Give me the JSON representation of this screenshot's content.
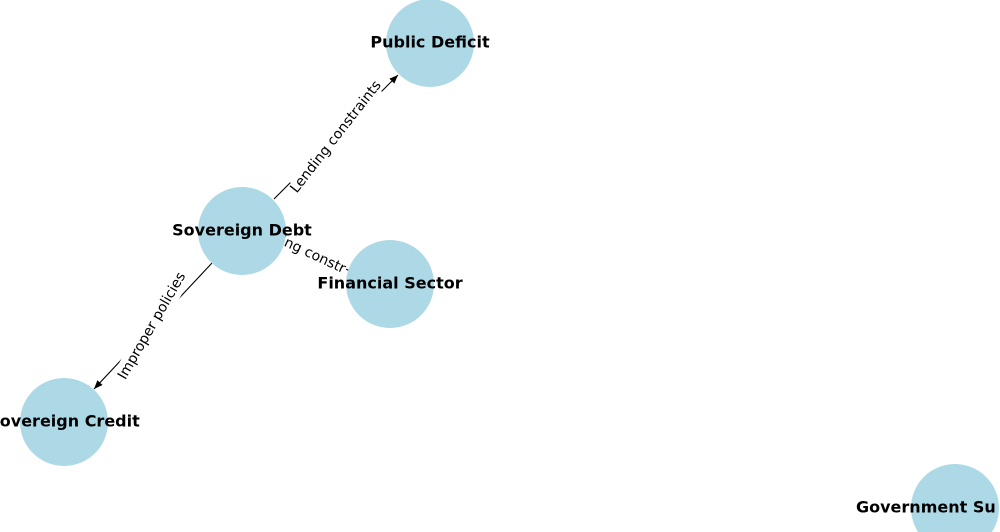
{
  "diagram": {
    "node_color": "#add8e6",
    "nodes": [
      {
        "id": "public_deficit",
        "label": "Public Deficit"
      },
      {
        "id": "sovereign_debt",
        "label": "Sovereign Debt"
      },
      {
        "id": "financial_sector",
        "label": "Financial Sector"
      },
      {
        "id": "sovereign_credit",
        "label": "Sovereign Credit"
      },
      {
        "id": "government_su",
        "label": "Government Su"
      }
    ],
    "edges": [
      {
        "from": "sovereign_debt",
        "to": "public_deficit",
        "label": "Lending constraints",
        "directed": true
      },
      {
        "from": "sovereign_debt",
        "to": "financial_sector",
        "label": "ing constr",
        "directed": false
      },
      {
        "from": "sovereign_debt",
        "to": "sovereign_credit",
        "label": "Improper policies",
        "directed": true
      }
    ]
  }
}
